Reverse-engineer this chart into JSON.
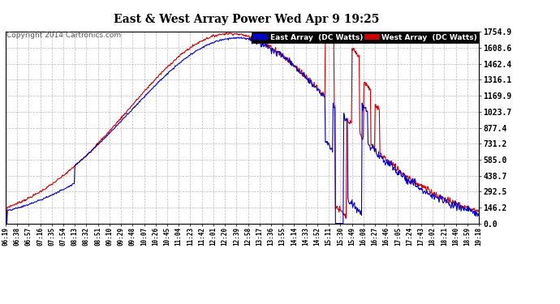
{
  "title": "East & West Array Power Wed Apr 9 19:25",
  "copyright": "Copyright 2014 Cartronics.com",
  "legend_east": "East Array  (DC Watts)",
  "legend_west": "West Array  (DC Watts)",
  "east_color": "#0000cc",
  "west_color": "#cc0000",
  "background_color": "#ffffff",
  "plot_bg_color": "#ffffff",
  "grid_color": "#aaaaaa",
  "yticks": [
    0.0,
    146.2,
    292.5,
    438.7,
    585.0,
    731.2,
    877.4,
    1023.7,
    1169.9,
    1316.1,
    1462.4,
    1608.6,
    1754.9
  ],
  "ymax": 1754.9,
  "xtick_labels": [
    "06:19",
    "06:38",
    "06:57",
    "07:16",
    "07:35",
    "07:54",
    "08:13",
    "08:32",
    "08:51",
    "09:10",
    "09:29",
    "09:48",
    "10:07",
    "10:26",
    "10:45",
    "11:04",
    "11:23",
    "11:42",
    "12:01",
    "12:20",
    "12:39",
    "12:58",
    "13:17",
    "13:36",
    "13:55",
    "14:14",
    "14:33",
    "14:52",
    "15:11",
    "15:30",
    "15:49",
    "16:08",
    "16:27",
    "16:46",
    "17:05",
    "17:24",
    "17:43",
    "18:02",
    "18:21",
    "18:40",
    "18:59",
    "19:18"
  ]
}
